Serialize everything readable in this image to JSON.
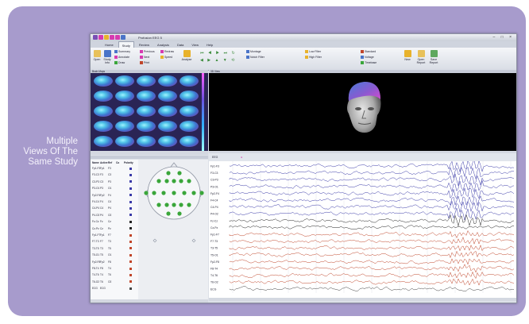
{
  "caption": {
    "lines": [
      "Multiple",
      "Views Of The",
      "Same Study"
    ]
  },
  "app": {
    "title": "Profusion EEG 5",
    "tabs": [
      "Home",
      "Study",
      "Review",
      "Analysis",
      "Data",
      "View",
      "Help"
    ],
    "active_tab": "Home"
  },
  "ribbon": {
    "buttons": [
      "Open",
      "Study Info",
      "Analyse",
      "New",
      "Open Report",
      "Save Report"
    ],
    "small_items": [
      "Summary",
      "Annotate",
      "Draw",
      "Previous",
      "Next",
      "Print",
      "Redraw",
      "Speed",
      "Montage",
      "Notch Filter",
      "Low Filter",
      "High Filter",
      "Standard",
      "Voltage",
      "Timebase"
    ]
  },
  "panes": {
    "maps_title": "Brain Maps",
    "render_title": "3D View",
    "eeg_title": "EEG"
  },
  "montage": {
    "header": [
      "Name",
      "Active",
      "Ref",
      "Co",
      "Polarity"
    ],
    "rows": [
      [
        "Fp1-F3",
        "Fp1",
        "F3"
      ],
      [
        "F3-C3",
        "F3",
        "C3"
      ],
      [
        "C3-P3",
        "C3",
        "P3"
      ],
      [
        "P3-O1",
        "P3",
        "O1"
      ],
      [
        "Fp2-F4",
        "Fp2",
        "F4"
      ],
      [
        "F4-C4",
        "F4",
        "C4"
      ],
      [
        "C4-P4",
        "C4",
        "P4"
      ],
      [
        "P4-O2",
        "P4",
        "O2"
      ],
      [
        "Fz-Cz",
        "Fz",
        "Cz"
      ],
      [
        "Cz-Pz",
        "Cz",
        "Pz"
      ],
      [
        "Fp1-F7",
        "Fp1",
        "F7"
      ],
      [
        "F7-T3",
        "F7",
        "T3"
      ],
      [
        "T3-T5",
        "T3",
        "T5"
      ],
      [
        "T5-O1",
        "T5",
        "O1"
      ],
      [
        "Fp2-F8",
        "Fp2",
        "F8"
      ],
      [
        "F8-T4",
        "F8",
        "T4"
      ],
      [
        "T4-T6",
        "T4",
        "T6"
      ],
      [
        "T6-O2",
        "T6",
        "O2"
      ],
      [
        "ECG",
        "ECG",
        ""
      ]
    ]
  },
  "eeg": {
    "channels": [
      "Fp1-F3",
      "F3-C3",
      "C3-P3",
      "P3-O1",
      "Fp2-F4",
      "F4-C4",
      "C4-P4",
      "P4-O2",
      "Fz-Cz",
      "Cz-Pz",
      "Fp1-F7",
      "F7-T3",
      "T3-T5",
      "T5-O1",
      "Fp2-F8",
      "F8-T4",
      "T4-T6",
      "T6-O2",
      "ECG"
    ],
    "channel_colors": [
      "#3a3aa8",
      "#3a3aa8",
      "#3a3aa8",
      "#3a3aa8",
      "#3a3aa8",
      "#3a3aa8",
      "#3a3aa8",
      "#3a3aa8",
      "#222222",
      "#222222",
      "#c0452a",
      "#c0452a",
      "#c0452a",
      "#c0452a",
      "#c0452a",
      "#c0452a",
      "#c0452a",
      "#c0452a",
      "#444444"
    ]
  },
  "colors": {
    "frame": "#a79bcc",
    "caption": "#f4f1fb",
    "accent_pink": "#d63ab0",
    "electrode": "#3aa63a"
  }
}
